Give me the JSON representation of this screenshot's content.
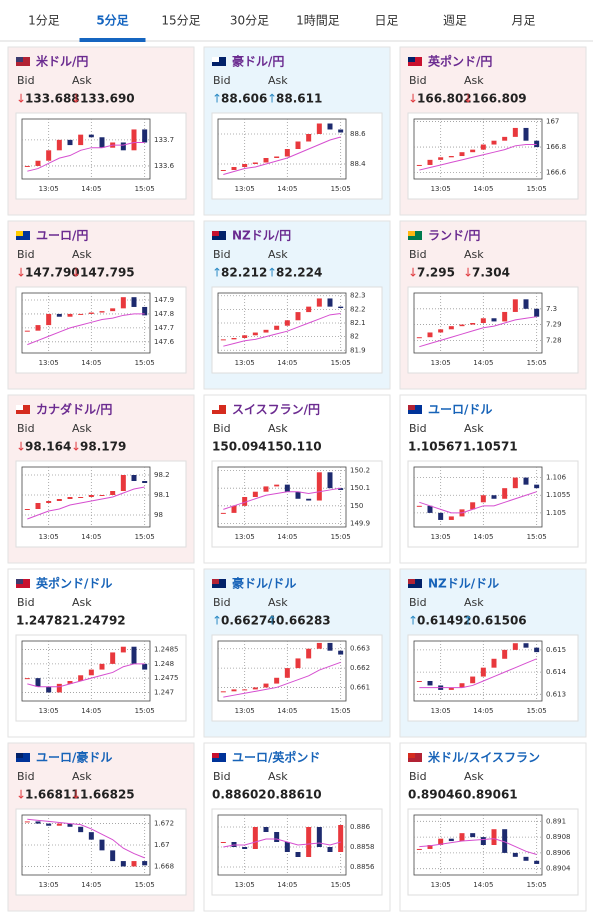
{
  "tabs": [
    "1分足",
    "5分足",
    "15分足",
    "30分足",
    "1時間足",
    "日足",
    "週足",
    "月足"
  ],
  "active_tab": 1,
  "bid_label": "Bid",
  "ask_label": "Ask",
  "time_axis": [
    null,
    null,
    "13:05",
    null,
    null,
    null,
    "14:05",
    null,
    null,
    null,
    null,
    "15:05"
  ],
  "up_color": "#e8383d",
  "down_color": "#1d2a6e",
  "ma_color": "#d64fd0",
  "cards": [
    {
      "title": "米ドル/円",
      "title_color": "#6b2b90",
      "background": "#fbeeee",
      "flag": [
        "#b22234",
        "#3c3b6e"
      ],
      "bid_arrow": "↓",
      "bid": "133.688",
      "ask_arrow": "↓",
      "ask": "133.690",
      "arrow_color": "#e0393e",
      "chart": {
        "ylim": [
          133.55,
          133.78
        ],
        "yticks": [
          133.7,
          133.6
        ],
        "values": [
          133.6,
          133.62,
          133.66,
          133.7,
          133.68,
          133.72,
          133.71,
          133.67,
          133.69,
          133.66,
          133.74,
          133.69
        ],
        "ma": [
          133.58,
          133.59,
          133.61,
          133.63,
          133.64,
          133.66,
          133.67,
          133.67,
          133.68,
          133.68,
          133.69,
          133.69
        ]
      }
    },
    {
      "title": "豪ドル/円",
      "title_color": "#6b2b90",
      "background": "#e9f5fc",
      "flag": [
        "#012169",
        "#ffffff"
      ],
      "bid_arrow": "↑",
      "bid": "88.606",
      "ask_arrow": "↑",
      "ask": "88.611",
      "arrow_color": "#2b8ac4",
      "chart": {
        "ylim": [
          88.3,
          88.7
        ],
        "yticks": [
          88.6,
          88.4
        ],
        "values": [
          88.36,
          88.38,
          88.4,
          88.41,
          88.44,
          88.45,
          88.5,
          88.55,
          88.6,
          88.67,
          88.63,
          88.61
        ],
        "ma": [
          88.33,
          88.35,
          88.37,
          88.38,
          88.4,
          88.42,
          88.44,
          88.47,
          88.5,
          88.53,
          88.56,
          88.58
        ]
      }
    },
    {
      "title": "英ポンド/円",
      "title_color": "#6b2b90",
      "background": "#fbeeee",
      "flag": [
        "#c8102e",
        "#012169"
      ],
      "bid_arrow": "↓",
      "bid": "166.802",
      "ask_arrow": "↓",
      "ask": "166.809",
      "arrow_color": "#e0393e",
      "chart": {
        "ylim": [
          166.55,
          167.02
        ],
        "yticks": [
          167,
          166.8,
          166.6
        ],
        "values": [
          166.66,
          166.7,
          166.72,
          166.73,
          166.76,
          166.78,
          166.82,
          166.85,
          166.88,
          166.95,
          166.85,
          166.8
        ],
        "ma": [
          166.62,
          166.64,
          166.66,
          166.68,
          166.7,
          166.72,
          166.74,
          166.76,
          166.78,
          166.81,
          166.82,
          166.82
        ]
      }
    },
    {
      "title": "ユーロ/円",
      "title_color": "#6b2b90",
      "background": "#fbeeee",
      "flag": [
        "#003399",
        "#ffcc00"
      ],
      "bid_arrow": "↓",
      "bid": "147.790",
      "ask_arrow": "↓",
      "ask": "147.795",
      "arrow_color": "#e0393e",
      "chart": {
        "ylim": [
          147.52,
          147.95
        ],
        "yticks": [
          147.9,
          147.8,
          147.7,
          147.6
        ],
        "values": [
          147.68,
          147.72,
          147.8,
          147.78,
          147.8,
          147.8,
          147.81,
          147.82,
          147.84,
          147.92,
          147.85,
          147.79
        ],
        "ma": [
          147.58,
          147.61,
          147.64,
          147.67,
          147.7,
          147.72,
          147.74,
          147.76,
          147.77,
          147.79,
          147.8,
          147.8
        ]
      }
    },
    {
      "title": "NZドル/円",
      "title_color": "#6b2b90",
      "background": "#e9f5fc",
      "flag": [
        "#012169",
        "#c8102e"
      ],
      "bid_arrow": "↑",
      "bid": "82.212",
      "ask_arrow": "↑",
      "ask": "82.224",
      "arrow_color": "#2b8ac4",
      "chart": {
        "ylim": [
          81.88,
          82.32
        ],
        "yticks": [
          82.3,
          82.2,
          82.1,
          82,
          81.9
        ],
        "values": [
          81.98,
          81.99,
          82.01,
          82.03,
          82.05,
          82.08,
          82.12,
          82.18,
          82.22,
          82.28,
          82.22,
          82.21
        ],
        "ma": [
          81.93,
          81.95,
          81.97,
          81.98,
          82.0,
          82.02,
          82.04,
          82.07,
          82.1,
          82.13,
          82.16,
          82.17
        ]
      }
    },
    {
      "title": "ランド/円",
      "title_color": "#6b2b90",
      "background": "#fbeeee",
      "flag": [
        "#007a4d",
        "#ffb612"
      ],
      "bid_arrow": "↓",
      "bid": "7.295",
      "ask_arrow": "↓",
      "ask": "7.304",
      "arrow_color": "#e0393e",
      "chart": {
        "ylim": [
          7.272,
          7.31
        ],
        "yticks": [
          7.3,
          7.29,
          7.28
        ],
        "values": [
          7.282,
          7.285,
          7.287,
          7.289,
          7.29,
          7.291,
          7.294,
          7.292,
          7.298,
          7.306,
          7.3,
          7.295
        ],
        "ma": [
          7.276,
          7.278,
          7.28,
          7.282,
          7.284,
          7.286,
          7.288,
          7.289,
          7.291,
          7.293,
          7.294,
          7.295
        ]
      }
    },
    {
      "title": "カナダドル/円",
      "title_color": "#6b2b90",
      "background": "#fbeeee",
      "flag": [
        "#d52b1e",
        "#ffffff"
      ],
      "bid_arrow": "↓",
      "bid": "98.164",
      "ask_arrow": "↓",
      "ask": "98.179",
      "arrow_color": "#e0393e",
      "chart": {
        "ylim": [
          97.94,
          98.24
        ],
        "yticks": [
          98.2,
          98.1,
          98
        ],
        "values": [
          98.03,
          98.06,
          98.07,
          98.08,
          98.09,
          98.09,
          98.1,
          98.1,
          98.12,
          98.2,
          98.17,
          98.16
        ],
        "ma": [
          97.98,
          98.0,
          98.02,
          98.03,
          98.05,
          98.06,
          98.07,
          98.08,
          98.09,
          98.11,
          98.13,
          98.14
        ]
      }
    },
    {
      "title": "スイスフラン/円",
      "title_color": "#6b2b90",
      "background": "#ffffff",
      "flag": [
        "#d52b1e",
        "#ffffff"
      ],
      "bid_arrow": null,
      "bid": "150.094",
      "ask_arrow": null,
      "ask": "150.110",
      "arrow_color": "#333333",
      "chart": {
        "ylim": [
          149.88,
          150.22
        ],
        "yticks": [
          150.2,
          150.1,
          150,
          149.9
        ],
        "values": [
          149.96,
          150.0,
          150.05,
          150.08,
          150.11,
          150.12,
          150.08,
          150.04,
          150.03,
          150.19,
          150.1,
          150.09
        ],
        "ma": [
          149.98,
          150.0,
          150.02,
          150.04,
          150.06,
          150.07,
          150.08,
          150.08,
          150.07,
          150.08,
          150.09,
          150.1
        ]
      }
    },
    {
      "title": "ユーロ/ドル",
      "title_color": "#1763b8",
      "background": "#ffffff",
      "flag": [
        "#003399",
        "#b22234"
      ],
      "bid_arrow": null,
      "bid": "1.10567",
      "ask_arrow": null,
      "ask": "1.10571",
      "arrow_color": "#333333",
      "chart": {
        "ylim": [
          1.1046,
          1.1063
        ],
        "yticks": [
          1.106,
          1.1055,
          1.105
        ],
        "values": [
          1.1052,
          1.105,
          1.1048,
          1.1049,
          1.1051,
          1.1053,
          1.1055,
          1.1054,
          1.1057,
          1.106,
          1.1058,
          1.1057
        ],
        "ma": [
          1.1053,
          1.1052,
          1.1051,
          1.105,
          1.105,
          1.1051,
          1.1052,
          1.1052,
          1.1053,
          1.1054,
          1.1055,
          1.1056
        ]
      }
    },
    {
      "title": "英ポンド/ドル",
      "title_color": "#1763b8",
      "background": "#ffffff",
      "flag": [
        "#c8102e",
        "#3c3b6e"
      ],
      "bid_arrow": null,
      "bid": "1.24782",
      "ask_arrow": null,
      "ask": "1.24792",
      "arrow_color": "#333333",
      "chart": {
        "ylim": [
          1.2467,
          1.2488
        ],
        "yticks": [
          1.2485,
          1.248,
          1.2475,
          1.247
        ],
        "values": [
          1.2475,
          1.2472,
          1.247,
          1.2473,
          1.2474,
          1.2476,
          1.2478,
          1.248,
          1.2484,
          1.2486,
          1.248,
          1.2478
        ],
        "ma": [
          1.2473,
          1.2472,
          1.2472,
          1.2472,
          1.2473,
          1.2474,
          1.2475,
          1.2476,
          1.2477,
          1.2479,
          1.248,
          1.248
        ]
      }
    },
    {
      "title": "豪ドル/ドル",
      "title_color": "#1763b8",
      "background": "#e9f5fc",
      "flag": [
        "#012169",
        "#b22234"
      ],
      "bid_arrow": "↑",
      "bid": "0.66274",
      "ask_arrow": "↑",
      "ask": "0.66283",
      "arrow_color": "#2b8ac4",
      "chart": {
        "ylim": [
          0.6603,
          0.6634
        ],
        "yticks": [
          0.663,
          0.662,
          0.661
        ],
        "values": [
          0.6608,
          0.6609,
          0.6609,
          0.661,
          0.6612,
          0.6615,
          0.662,
          0.6625,
          0.663,
          0.6633,
          0.6629,
          0.6627
        ],
        "ma": [
          0.6605,
          0.6606,
          0.6607,
          0.6608,
          0.6609,
          0.661,
          0.6612,
          0.6614,
          0.6616,
          0.6619,
          0.6621,
          0.6623
        ]
      }
    },
    {
      "title": "NZドル/ドル",
      "title_color": "#1763b8",
      "background": "#e9f5fc",
      "flag": [
        "#012169",
        "#b22234"
      ],
      "bid_arrow": "↑",
      "bid": "0.61492",
      "ask_arrow": "↑",
      "ask": "0.61506",
      "arrow_color": "#2b8ac4",
      "chart": {
        "ylim": [
          0.6127,
          0.6154
        ],
        "yticks": [
          0.615,
          0.614,
          0.613
        ],
        "values": [
          0.6136,
          0.6134,
          0.6132,
          0.6133,
          0.6135,
          0.6138,
          0.6142,
          0.6146,
          0.615,
          0.6153,
          0.6151,
          0.6149
        ],
        "ma": [
          0.6133,
          0.6133,
          0.6133,
          0.6133,
          0.6133,
          0.6134,
          0.6136,
          0.6138,
          0.614,
          0.6142,
          0.6144,
          0.6146
        ]
      }
    },
    {
      "title": "ユーロ/豪ドル",
      "title_color": "#1763b8",
      "background": "#fbeeee",
      "flag": [
        "#003399",
        "#012169"
      ],
      "bid_arrow": "↓",
      "bid": "1.66811",
      "ask_arrow": "↓",
      "ask": "1.66825",
      "arrow_color": "#e0393e",
      "chart": {
        "ylim": [
          1.6672,
          1.6728
        ],
        "yticks": [
          1.672,
          1.67,
          1.668
        ],
        "values": [
          1.6722,
          1.672,
          1.6718,
          1.672,
          1.6717,
          1.6712,
          1.6705,
          1.6695,
          1.6685,
          1.668,
          1.6685,
          1.6681
        ],
        "ma": [
          1.6724,
          1.6723,
          1.6722,
          1.6721,
          1.672,
          1.6719,
          1.6715,
          1.671,
          1.6705,
          1.6697,
          1.6692,
          1.6688
        ]
      }
    },
    {
      "title": "ユーロ/英ポンド",
      "title_color": "#1763b8",
      "background": "#ffffff",
      "flag": [
        "#003399",
        "#c8102e"
      ],
      "bid_arrow": null,
      "bid": "0.88602",
      "ask_arrow": null,
      "ask": "0.88610",
      "arrow_color": "#333333",
      "chart": {
        "ylim": [
          0.88552,
          0.88612
        ],
        "yticks": [
          0.886,
          0.8858,
          0.8856
        ],
        "values": [
          0.88585,
          0.8858,
          0.88578,
          0.886,
          0.88595,
          0.88585,
          0.88575,
          0.8857,
          0.886,
          0.8858,
          0.88575,
          0.88602
        ],
        "ma": [
          0.8858,
          0.88582,
          0.88582,
          0.88585,
          0.88588,
          0.88588,
          0.88585,
          0.88582,
          0.88583,
          0.88584,
          0.88582,
          0.88585
        ]
      }
    },
    {
      "title": "米ドル/スイスフラン",
      "title_color": "#1763b8",
      "background": "#ffffff",
      "flag": [
        "#b22234",
        "#d52b1e"
      ],
      "bid_arrow": null,
      "bid": "0.89046",
      "ask_arrow": null,
      "ask": "0.89061",
      "arrow_color": "#333333",
      "chart": {
        "ylim": [
          0.89032,
          0.89108
        ],
        "yticks": [
          0.891,
          0.8908,
          0.8906,
          0.8904
        ],
        "values": [
          0.89065,
          0.8907,
          0.89078,
          0.89075,
          0.89085,
          0.8908,
          0.8907,
          0.8909,
          0.8906,
          0.89055,
          0.8905,
          0.89046
        ],
        "ma": [
          0.89068,
          0.89069,
          0.89071,
          0.89073,
          0.89075,
          0.89076,
          0.89077,
          0.89078,
          0.89074,
          0.89068,
          0.89062,
          0.89058
        ]
      }
    }
  ]
}
